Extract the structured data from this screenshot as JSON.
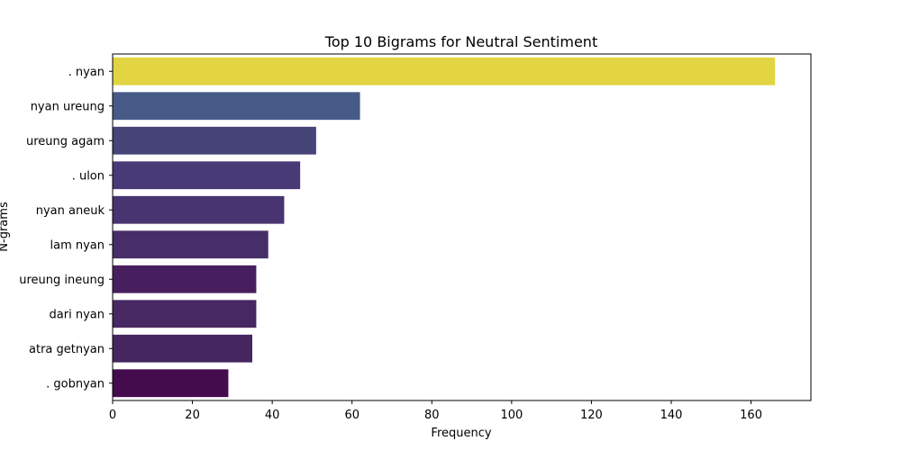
{
  "chart_data": {
    "type": "bar",
    "orientation": "horizontal",
    "title": "Top 10 Bigrams for Neutral Sentiment",
    "xlabel": "Frequency",
    "ylabel": "N-grams",
    "xlim": [
      0,
      175
    ],
    "x_ticks": [
      0,
      20,
      40,
      60,
      80,
      100,
      120,
      140,
      160
    ],
    "grid": false,
    "categories": [
      ". nyan",
      "nyan ureung",
      "ureung agam",
      ". ulon",
      "nyan aneuk",
      "lam nyan",
      "ureung ineung",
      "dari nyan",
      "atra getnyan",
      ". gobnyan"
    ],
    "values": [
      166,
      62,
      51,
      47,
      43,
      39,
      36,
      36,
      35,
      29
    ],
    "colors": [
      "#e2d541",
      "#465a87",
      "#474478",
      "#483a76",
      "#483471",
      "#472e68",
      "#481f5e",
      "#472862",
      "#462660",
      "#440c4d"
    ],
    "colormap": "viridis"
  }
}
